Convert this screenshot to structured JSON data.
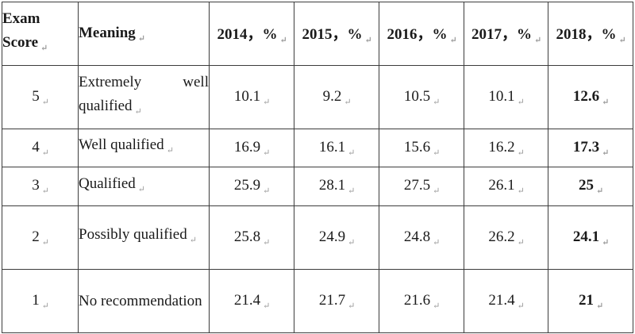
{
  "header": {
    "score_line1": "Exam",
    "score_line2": "Score",
    "meaning": "Meaning",
    "years": [
      "2014，%",
      "2015，%",
      "2016，%",
      "2017，%",
      "2018，%"
    ]
  },
  "rows": [
    {
      "score": "5",
      "meaning": "Extremely well qualified",
      "values": [
        "10.1",
        "9.2",
        "10.5",
        "10.1",
        "12.6"
      ]
    },
    {
      "score": "4",
      "meaning": "Well qualified",
      "values": [
        "16.9",
        "16.1",
        "15.6",
        "16.2",
        "17.3"
      ]
    },
    {
      "score": "3",
      "meaning": "Qualified",
      "values": [
        "25.9",
        "28.1",
        "27.5",
        "26.1",
        "25"
      ]
    },
    {
      "score": "2",
      "meaning": "Possibly qualified",
      "values": [
        "25.8",
        "24.9",
        "24.8",
        "26.2",
        "24.1"
      ]
    },
    {
      "score": "1",
      "meaning": "No recommendation",
      "values": [
        "21.4",
        "21.7",
        "21.6",
        "21.4",
        "21"
      ]
    }
  ]
}
